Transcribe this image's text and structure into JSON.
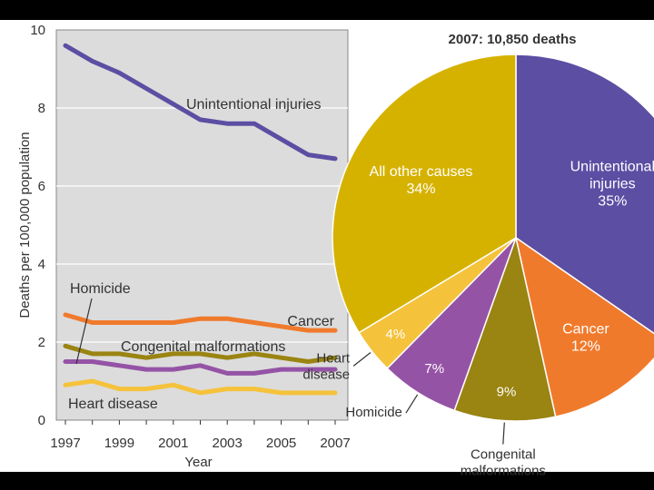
{
  "colors": {
    "background_frame": "#000000",
    "plot_bg": "#dcdcdc",
    "unintentional": "#5b4ea3",
    "cancer": "#f07a2c",
    "congenital": "#9a8412",
    "homicide": "#9553a6",
    "heart": "#f5c23b",
    "other": "#d6b200"
  },
  "chart_data": [
    {
      "type": "line",
      "xlabel": "Year",
      "ylabel": "Deaths per 100,000 population",
      "xlim": [
        1997,
        2007
      ],
      "ylim": [
        0,
        10
      ],
      "x_ticks": [
        1997,
        1999,
        2001,
        2003,
        2005,
        2007
      ],
      "y_ticks": [
        0,
        2,
        4,
        6,
        8,
        10
      ],
      "grid": true,
      "x": [
        1997,
        1998,
        1999,
        2000,
        2001,
        2002,
        2003,
        2004,
        2005,
        2006,
        2007
      ],
      "series": [
        {
          "name": "Unintentional injuries",
          "color": "#5b4ea3",
          "values": [
            9.6,
            9.2,
            8.9,
            8.5,
            8.1,
            7.7,
            7.6,
            7.6,
            7.2,
            6.8,
            6.7
          ]
        },
        {
          "name": "Cancer",
          "color": "#f07a2c",
          "values": [
            2.7,
            2.5,
            2.5,
            2.5,
            2.5,
            2.6,
            2.6,
            2.5,
            2.4,
            2.3,
            2.3
          ]
        },
        {
          "name": "Congenital malformations",
          "color": "#9a8412",
          "values": [
            1.9,
            1.7,
            1.7,
            1.6,
            1.7,
            1.7,
            1.6,
            1.7,
            1.6,
            1.5,
            1.6
          ]
        },
        {
          "name": "Homicide",
          "color": "#9553a6",
          "values": [
            1.5,
            1.5,
            1.4,
            1.3,
            1.3,
            1.4,
            1.2,
            1.2,
            1.3,
            1.3,
            1.3
          ]
        },
        {
          "name": "Heart disease",
          "color": "#f5c23b",
          "values": [
            0.9,
            1.0,
            0.8,
            0.8,
            0.9,
            0.7,
            0.8,
            0.8,
            0.7,
            0.7,
            0.7
          ]
        }
      ]
    },
    {
      "type": "pie",
      "title": "2007: 10,850 deaths",
      "slices": [
        {
          "label": "Unintentional injuries",
          "value": 35,
          "percent_label": "35%",
          "color": "#5b4ea3"
        },
        {
          "label": "Cancer",
          "value": 12,
          "percent_label": "12%",
          "color": "#f07a2c"
        },
        {
          "label": "Congenital malformations",
          "value": 9,
          "percent_label": "9%",
          "color": "#9a8412"
        },
        {
          "label": "Homicide",
          "value": 7,
          "percent_label": "7%",
          "color": "#9553a6"
        },
        {
          "label": "Heart disease",
          "value": 4,
          "percent_label": "4%",
          "color": "#f5c23b"
        },
        {
          "label": "All other causes",
          "value": 34,
          "percent_label": "34%",
          "color": "#d6b200"
        }
      ]
    }
  ]
}
